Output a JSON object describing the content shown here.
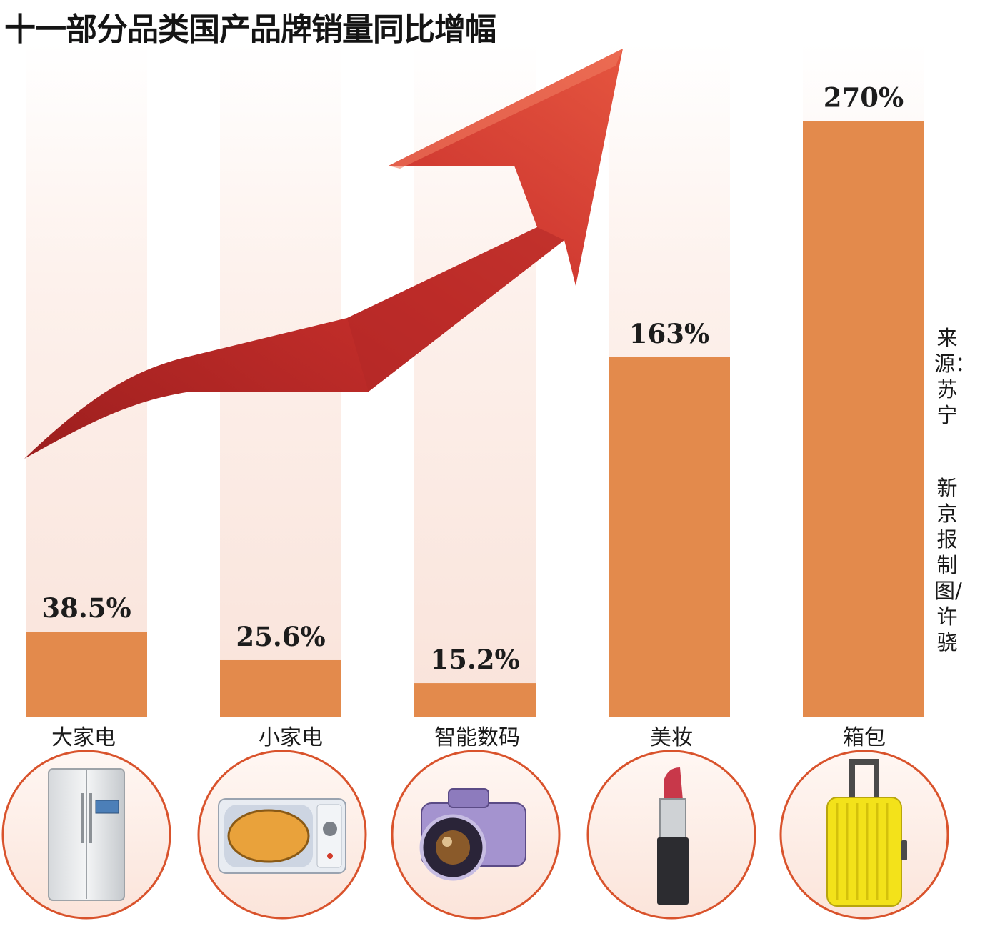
{
  "chart_data": {
    "type": "bar",
    "title": "十一部分品类国产品牌销量同比增幅",
    "categories": [
      "大家电",
      "小家电",
      "智能数码",
      "美妆",
      "箱包"
    ],
    "values": [
      38.5,
      25.6,
      15.2,
      163,
      270
    ],
    "value_labels": [
      "38.5%",
      "25.6%",
      "15.2%",
      "163%",
      "270%"
    ],
    "icons": [
      "refrigerator-icon",
      "microwave-icon",
      "camera-icon",
      "lipstick-icon",
      "suitcase-icon"
    ],
    "ylim": [
      0,
      300
    ],
    "grid": false,
    "legend": "none",
    "colors": {
      "bar": "#e38a4c",
      "column_bg": "#fbeae4",
      "arrow": "#c9302c",
      "icon_ring": "#d9532c"
    }
  },
  "source_note": {
    "source": "来源：苏宁",
    "credit": "新京报制图/许骁"
  }
}
